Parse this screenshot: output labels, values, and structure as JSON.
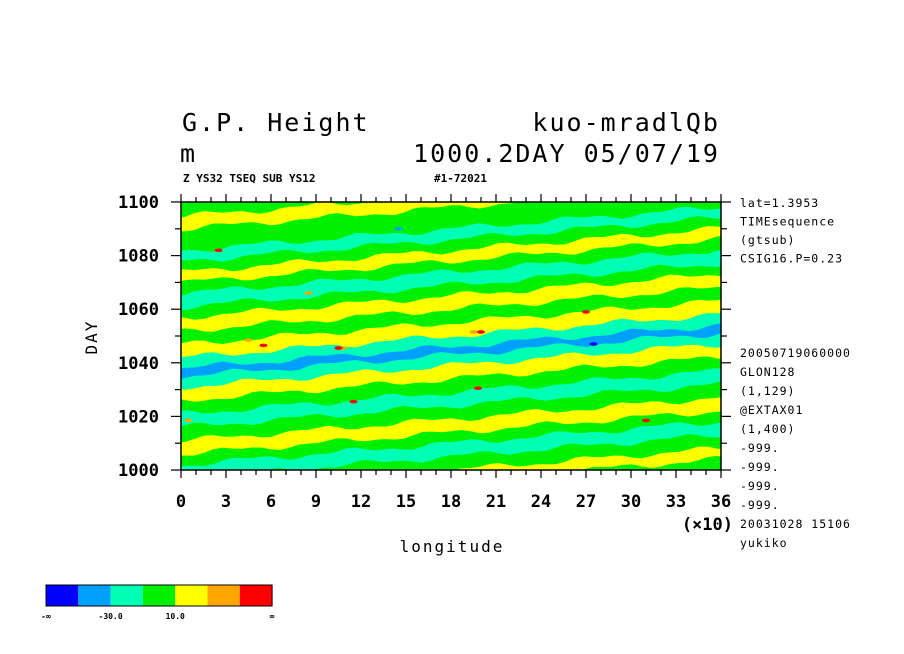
{
  "header": {
    "title_left": "G.P. Height",
    "title_right": "kuo-mradlQb",
    "units": "m",
    "level_date": "1000.2DAY 05/07/19",
    "subtitle_left": "Z YS32 TSEQ SUB YS12",
    "subtitle_right": "#1-72021"
  },
  "sidebar_top": [
    "lat=1.3953",
    "TIMEsequence",
    "(gtsub)",
    "CSIG16.P=0.23"
  ],
  "sidebar_bottom": [
    "20050719060000",
    "GLON128",
    "(1,129)",
    "@EXTAX01",
    "(1,400)",
    "-999.",
    "-999.",
    "-999.",
    "-999.",
    "20031028  15106",
    "yukiko"
  ],
  "colors": {
    "palette": [
      "#0000ff",
      "#00a0ff",
      "#00ffb4",
      "#00f000",
      "#ffff00",
      "#ffa500",
      "#ff0000"
    ]
  },
  "colorbar": {
    "labels": [
      "-∞",
      "-30.0",
      "10.0",
      "∞"
    ]
  },
  "chart_data": {
    "type": "heatmap",
    "title": "G.P. Height",
    "xlabel": "longitude",
    "ylabel": "DAY",
    "x_multiplier": "(×10)",
    "xlim": [
      0,
      36
    ],
    "ylim": [
      1000,
      1100
    ],
    "x_ticks": [
      "0",
      "3",
      "6",
      "9",
      "12",
      "15",
      "18",
      "21",
      "24",
      "27",
      "30",
      "33",
      "36"
    ],
    "y_ticks": [
      "1000",
      "1020",
      "1040",
      "1060",
      "1080",
      "1100"
    ],
    "bands": [
      {
        "day": 1000,
        "color": "#00f000"
      },
      {
        "day": 1004,
        "color": "#ffff00"
      },
      {
        "day": 1008,
        "color": "#00f000"
      },
      {
        "day": 1013,
        "color": "#00ffb4"
      },
      {
        "day": 1018,
        "color": "#00f000"
      },
      {
        "day": 1022,
        "color": "#ffff00"
      },
      {
        "day": 1027,
        "color": "#00f000"
      },
      {
        "day": 1032,
        "color": "#00ffb4"
      },
      {
        "day": 1037,
        "color": "#00f000"
      },
      {
        "day": 1042,
        "color": "#ffff00"
      },
      {
        "day": 1047,
        "color": "#00ffb4"
      },
      {
        "day": 1051,
        "color": "#00a0ff"
      },
      {
        "day": 1054,
        "color": "#00ffb4"
      },
      {
        "day": 1058,
        "color": "#ffff00"
      },
      {
        "day": 1063,
        "color": "#00f000"
      },
      {
        "day": 1068,
        "color": "#ffff00"
      },
      {
        "day": 1073,
        "color": "#00f000"
      },
      {
        "day": 1077,
        "color": "#00ffb4"
      },
      {
        "day": 1082,
        "color": "#00f000"
      },
      {
        "day": 1086,
        "color": "#ffff00"
      },
      {
        "day": 1090,
        "color": "#00f000"
      },
      {
        "day": 1094,
        "color": "#00ffb4"
      },
      {
        "day": 1098,
        "color": "#00f000"
      }
    ],
    "band_slope_days_per_lon": 0.45,
    "spots": [
      {
        "lon": 10.8,
        "day": 1045.5,
        "color": "#ffa500"
      },
      {
        "lon": 10.5,
        "day": 1045.5,
        "color": "#ff0000"
      },
      {
        "lon": 19.5,
        "day": 1051.5,
        "color": "#ffa500"
      },
      {
        "lon": 20.0,
        "day": 1051.5,
        "color": "#ff0000"
      },
      {
        "lon": 27.5,
        "day": 1047,
        "color": "#0000ff"
      },
      {
        "lon": 27.0,
        "day": 1046.5,
        "color": "#00a0ff"
      },
      {
        "lon": 19.8,
        "day": 1030.5,
        "color": "#ff0000"
      },
      {
        "lon": 11.5,
        "day": 1025.5,
        "color": "#ff0000"
      },
      {
        "lon": 31.0,
        "day": 1018.5,
        "color": "#ff0000"
      },
      {
        "lon": 2.5,
        "day": 1082,
        "color": "#ff0000"
      },
      {
        "lon": 0.5,
        "day": 1018.5,
        "color": "#ffa500"
      },
      {
        "lon": 4.5,
        "day": 1048.5,
        "color": "#ffa500"
      },
      {
        "lon": 5.5,
        "day": 1046.5,
        "color": "#ff0000"
      },
      {
        "lon": 8.5,
        "day": 1066,
        "color": "#ffa500"
      },
      {
        "lon": 27.0,
        "day": 1059,
        "color": "#ff0000"
      },
      {
        "lon": 14.5,
        "day": 1090,
        "color": "#00a0ff"
      }
    ]
  }
}
